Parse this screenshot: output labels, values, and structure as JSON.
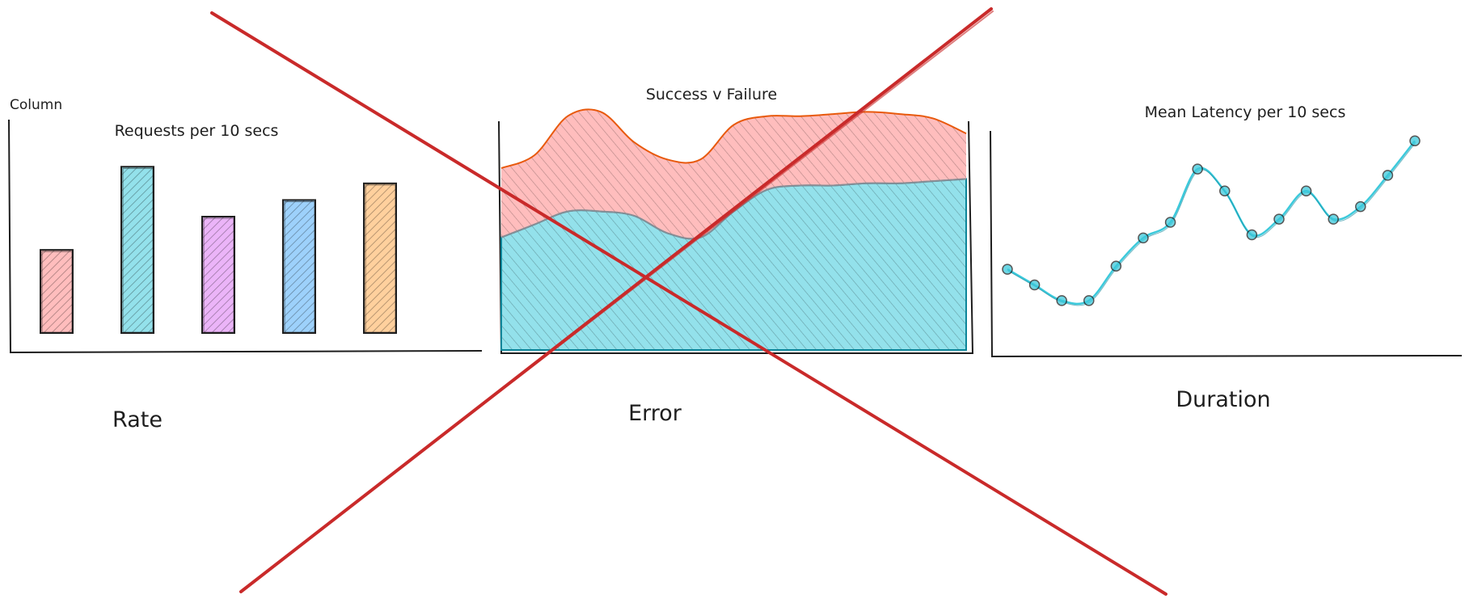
{
  "colors": {
    "ink": "#1e1e1e",
    "red": "#ff8787",
    "red_stroke": "#e8590c",
    "teal": "#3bc9db",
    "teal_stroke": "#0c8599",
    "purple": "#da77f2",
    "blue": "#4dabf7",
    "orange": "#ffa94d",
    "cross": "#c92a2a"
  },
  "top_left_label": "Column",
  "panel_labels": {
    "rate": "Rate",
    "error": "Error",
    "duration": "Duration"
  },
  "chart_data": [
    {
      "type": "bar",
      "title": "Requests per 10 secs",
      "categories": [
        "",
        "",
        "",
        "",
        ""
      ],
      "values": [
        5,
        10,
        7,
        8,
        9
      ],
      "bar_colors": [
        "#ff8787",
        "#3bc9db",
        "#da77f2",
        "#4dabf7",
        "#ffa94d"
      ],
      "ylim": [
        0,
        10.5
      ],
      "xlabel": "",
      "ylabel": "",
      "grid": false
    },
    {
      "type": "area",
      "title": "Success v Failure",
      "stacked": true,
      "x": [
        0,
        1,
        2,
        3,
        4,
        5,
        6,
        7,
        8,
        9,
        10,
        11,
        12,
        13,
        14
      ],
      "series": [
        {
          "values": [
            52,
            58,
            64,
            64,
            62,
            54,
            52,
            64,
            74,
            76,
            76,
            77,
            77,
            78,
            79
          ],
          "color": "#3bc9db"
        },
        {
          "values": [
            32,
            32,
            44,
            46,
            34,
            34,
            36,
            40,
            34,
            32,
            33,
            33,
            32,
            29,
            21
          ],
          "color": "#ff8787"
        }
      ],
      "ylim": [
        0,
        115
      ],
      "grid": false
    },
    {
      "type": "line",
      "title": "Mean Latency per 10 secs",
      "x": [
        1,
        2,
        3,
        4,
        5,
        6,
        7,
        8,
        9,
        10,
        11,
        12,
        13,
        14,
        15,
        16
      ],
      "values": [
        25,
        20,
        15,
        15,
        26,
        35,
        40,
        57,
        50,
        36,
        41,
        50,
        41,
        45,
        55,
        66
      ],
      "color": "#3bc9db",
      "marker": "circle",
      "ylim": [
        0,
        80
      ],
      "grid": false
    }
  ]
}
